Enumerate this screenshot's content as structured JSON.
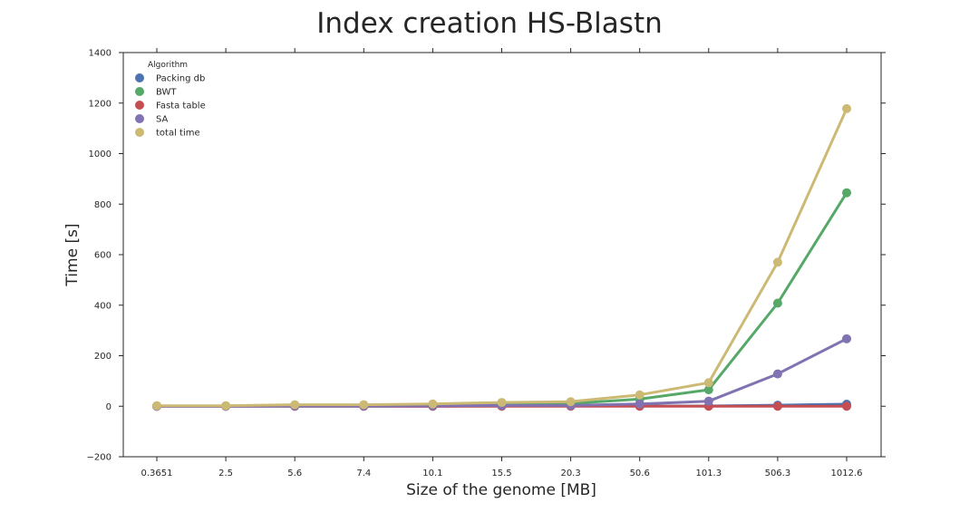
{
  "chart_data": {
    "type": "line",
    "title": "Index creation HS-Blastn",
    "xlabel": "Size of the genome [MB]",
    "ylabel": "Time [s]",
    "categories": [
      "0.3651",
      "2.5",
      "5.6",
      "7.4",
      "10.1",
      "15.5",
      "20.3",
      "50.6",
      "101.3",
      "506.3",
      "1012.6"
    ],
    "ylim": [
      -200,
      1400
    ],
    "yticks": [
      -200,
      0,
      200,
      400,
      600,
      800,
      1000,
      1200,
      1400
    ],
    "ytick_labels": [
      "−200",
      "0",
      "200",
      "400",
      "600",
      "800",
      "1000",
      "1200",
      "1400"
    ],
    "grid": false,
    "legend": {
      "title": "Algorithm",
      "position": "top-left"
    },
    "series": [
      {
        "name": "Packing db",
        "color": "#4c72b0",
        "values": [
          0,
          0,
          0,
          0,
          0,
          1,
          1,
          1,
          1,
          4,
          8
        ]
      },
      {
        "name": "BWT",
        "color": "#55a868",
        "values": [
          1,
          1,
          3,
          4,
          6,
          9,
          11,
          28,
          65,
          408,
          845
        ]
      },
      {
        "name": "Fasta table",
        "color": "#c44e52",
        "values": [
          0,
          0,
          0,
          0,
          0,
          0,
          0,
          0,
          0,
          0,
          0
        ]
      },
      {
        "name": "SA",
        "color": "#8172b2",
        "values": [
          0,
          0,
          1,
          1,
          2,
          3,
          3,
          9,
          20,
          128,
          267
        ]
      },
      {
        "name": "total time",
        "color": "#ccb974",
        "values": [
          2,
          2,
          6,
          6,
          9,
          15,
          18,
          45,
          93,
          570,
          1178
        ]
      }
    ]
  }
}
